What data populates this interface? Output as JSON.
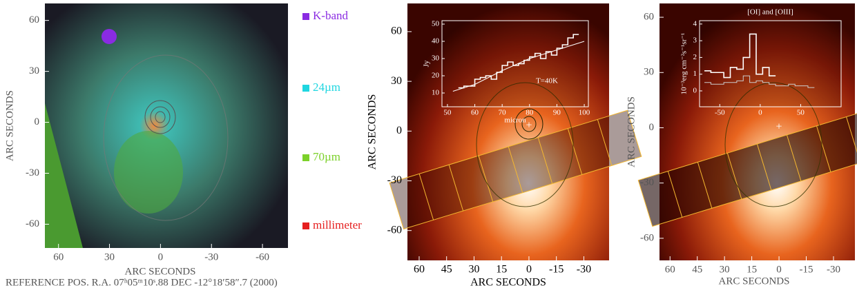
{
  "panels": [
    {
      "x_label": "ARC SECONDS",
      "y_label": "ARC SECONDS",
      "xlim": [
        68,
        -75
      ],
      "ylim": [
        -74,
        70
      ],
      "x_ticks": [
        60,
        30,
        0,
        -30,
        -60
      ],
      "y_ticks": [
        60,
        30,
        0,
        -30,
        -60
      ],
      "legend": [
        {
          "name": "K-band",
          "color": "#8a2be2"
        },
        {
          "name": "24µm",
          "color": "#1fd6e0"
        },
        {
          "name": "70µm",
          "color": "#7cd12a"
        },
        {
          "name": "millimeter",
          "color": "#e51f1f"
        }
      ],
      "reference": "REFERENCE POS.  R.A. 07ʰ05ᵐ10ˢ.88  DEC  -12°18′58″.7  (2000)"
    },
    {
      "x_label": "ARC SECONDS",
      "y_label": "ARC SECONDS",
      "xlim": [
        66.4,
        -43.8
      ],
      "ylim": [
        -78,
        77
      ],
      "x_ticks": [
        60,
        45,
        30,
        15,
        0,
        -15,
        -30
      ],
      "y_ticks": [
        60,
        30,
        0,
        -30,
        -60
      ],
      "inset": {
        "x_label": "micron",
        "y_label": "Jy",
        "annotation": "T=40K",
        "xlim": [
          48,
          101.5
        ],
        "ylim": [
          2,
          52
        ],
        "x_ticks": [
          50,
          60,
          70,
          80,
          90,
          100
        ],
        "y_ticks": [
          10,
          20,
          30,
          40,
          50
        ],
        "x": [
          55,
          57,
          59,
          61,
          63,
          65,
          67,
          69,
          71,
          73,
          75,
          77,
          79,
          81,
          83,
          85,
          87,
          89,
          91,
          93,
          95,
          97
        ],
        "values": [
          13,
          14,
          14,
          18,
          19,
          20,
          18,
          22,
          26,
          28,
          26,
          27,
          29,
          31,
          33,
          30,
          34,
          32,
          36,
          38,
          42,
          44
        ],
        "model_x": [
          52,
          60,
          70,
          80,
          90,
          100
        ],
        "model_values": [
          11,
          15,
          23,
          30,
          35,
          40
        ]
      }
    },
    {
      "x_label": "ARC SECONDS",
      "y_label": "ARC SECONDS",
      "xlim": [
        65.8,
        -41.8
      ],
      "ylim": [
        -72,
        67.5
      ],
      "x_ticks": [
        60,
        45,
        30,
        15,
        0,
        -15,
        -30
      ],
      "y_ticks": [
        60,
        30,
        0,
        -30,
        -60
      ],
      "inset": {
        "title": "[OI] and [OIII]",
        "y_label": "10⁻³erg cm⁻²s⁻¹sr⁻¹",
        "xlim": [
          -75,
          100
        ],
        "ylim": [
          -0.95,
          4.2
        ],
        "x_ticks": [
          -50,
          0,
          50
        ],
        "y_ticks": [
          0,
          1,
          2,
          3,
          4
        ],
        "x": [
          -65,
          -57,
          -49,
          -41,
          -33,
          -25,
          -17,
          -9,
          -1,
          7,
          15
        ],
        "values": [
          1.2,
          1.1,
          1.1,
          0.8,
          1.4,
          1.3,
          2.0,
          3.4,
          1.0,
          1.4,
          0.9
        ],
        "x2": [
          -65,
          -57,
          -49,
          -41,
          -33,
          -25,
          -17,
          -9,
          -1,
          7,
          15,
          23,
          31,
          39,
          47,
          55,
          63
        ],
        "values2": [
          0.5,
          0.4,
          0.4,
          0.5,
          0.5,
          0.6,
          0.9,
          0.5,
          0.6,
          0.5,
          0.4,
          0.3,
          0.3,
          0.4,
          0.3,
          0.3,
          0.2
        ]
      }
    }
  ]
}
